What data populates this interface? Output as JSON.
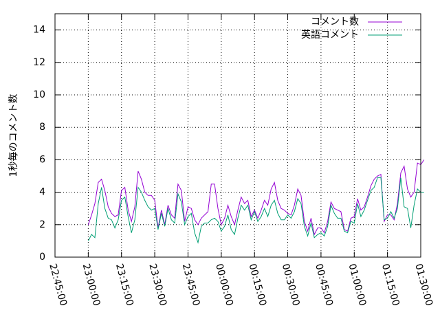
{
  "chart_data": {
    "type": "line",
    "ylabel": "1秒毎のコメント数",
    "ylim": [
      0,
      15
    ],
    "yticks": [
      0,
      2,
      4,
      6,
      8,
      10,
      12,
      14
    ],
    "xticks": [
      "22:45:00",
      "23:00:00",
      "23:15:00",
      "23:30:00",
      "23:45:00",
      "00:00:00",
      "00:15:00",
      "00:30:00",
      "00:45:00",
      "01:00:00",
      "01:15:00",
      "01:30:00"
    ],
    "x_start": "23:00:00",
    "x_step_minutes": 1.5,
    "legend_position": "top-right",
    "series": [
      {
        "name": "コメント数",
        "color": "#9400d3",
        "values": [
          2.0,
          2.6,
          3.3,
          4.6,
          4.8,
          4.1,
          3.1,
          2.7,
          2.5,
          2.6,
          4.1,
          4.3,
          2.9,
          2.2,
          3.1,
          5.3,
          4.8,
          4.0,
          3.8,
          3.8,
          3.5,
          1.8,
          2.9,
          2.0,
          3.2,
          2.6,
          2.4,
          4.5,
          4.1,
          2.2,
          3.1,
          3.0,
          2.3,
          2.0,
          2.4,
          2.6,
          2.8,
          4.5,
          4.5,
          3.0,
          2.0,
          2.4,
          3.2,
          2.5,
          2.0,
          2.9,
          3.7,
          3.3,
          3.5,
          2.5,
          2.9,
          2.4,
          2.9,
          3.5,
          3.2,
          4.2,
          4.6,
          3.5,
          3.0,
          2.9,
          2.7,
          2.6,
          3.2,
          4.2,
          3.8,
          2.2,
          1.6,
          2.4,
          1.4,
          1.8,
          1.8,
          1.5,
          2.2,
          3.4,
          3.0,
          2.9,
          2.8,
          1.7,
          1.6,
          2.4,
          2.5,
          3.6,
          2.9,
          3.1,
          3.7,
          4.4,
          4.8,
          5.0,
          5.1,
          2.2,
          2.6,
          2.6,
          2.3,
          3.3,
          5.2,
          5.6,
          4.2,
          3.7,
          4.0,
          5.8,
          5.7,
          6.0
        ]
      },
      {
        "name": "英語コメント",
        "color": "#009e73",
        "values": [
          1.0,
          1.4,
          1.2,
          3.3,
          4.3,
          3.0,
          2.4,
          2.3,
          1.8,
          2.3,
          3.5,
          3.7,
          2.5,
          1.5,
          2.3,
          4.3,
          4.0,
          3.5,
          3.1,
          2.9,
          3.0,
          1.7,
          2.7,
          1.9,
          3.0,
          2.3,
          2.1,
          3.9,
          3.4,
          2.0,
          2.5,
          2.7,
          1.5,
          0.9,
          1.9,
          2.1,
          2.1,
          2.3,
          2.4,
          2.2,
          1.6,
          1.9,
          2.6,
          1.7,
          1.4,
          2.4,
          3.2,
          2.9,
          3.2,
          2.3,
          2.8,
          2.2,
          2.5,
          3.0,
          2.5,
          3.2,
          3.5,
          2.7,
          2.3,
          2.3,
          2.6,
          2.4,
          2.8,
          3.6,
          3.3,
          1.9,
          1.3,
          2.1,
          1.2,
          1.4,
          1.5,
          1.3,
          1.9,
          3.2,
          2.7,
          2.4,
          2.4,
          1.6,
          1.5,
          2.2,
          2.1,
          3.3,
          2.5,
          2.9,
          3.5,
          4.1,
          4.3,
          4.9,
          4.9,
          2.3,
          2.4,
          2.8,
          2.4,
          3.0,
          4.9,
          3.1,
          3.0,
          1.8,
          3.2,
          4.2,
          4.0,
          4.0
        ]
      }
    ]
  }
}
